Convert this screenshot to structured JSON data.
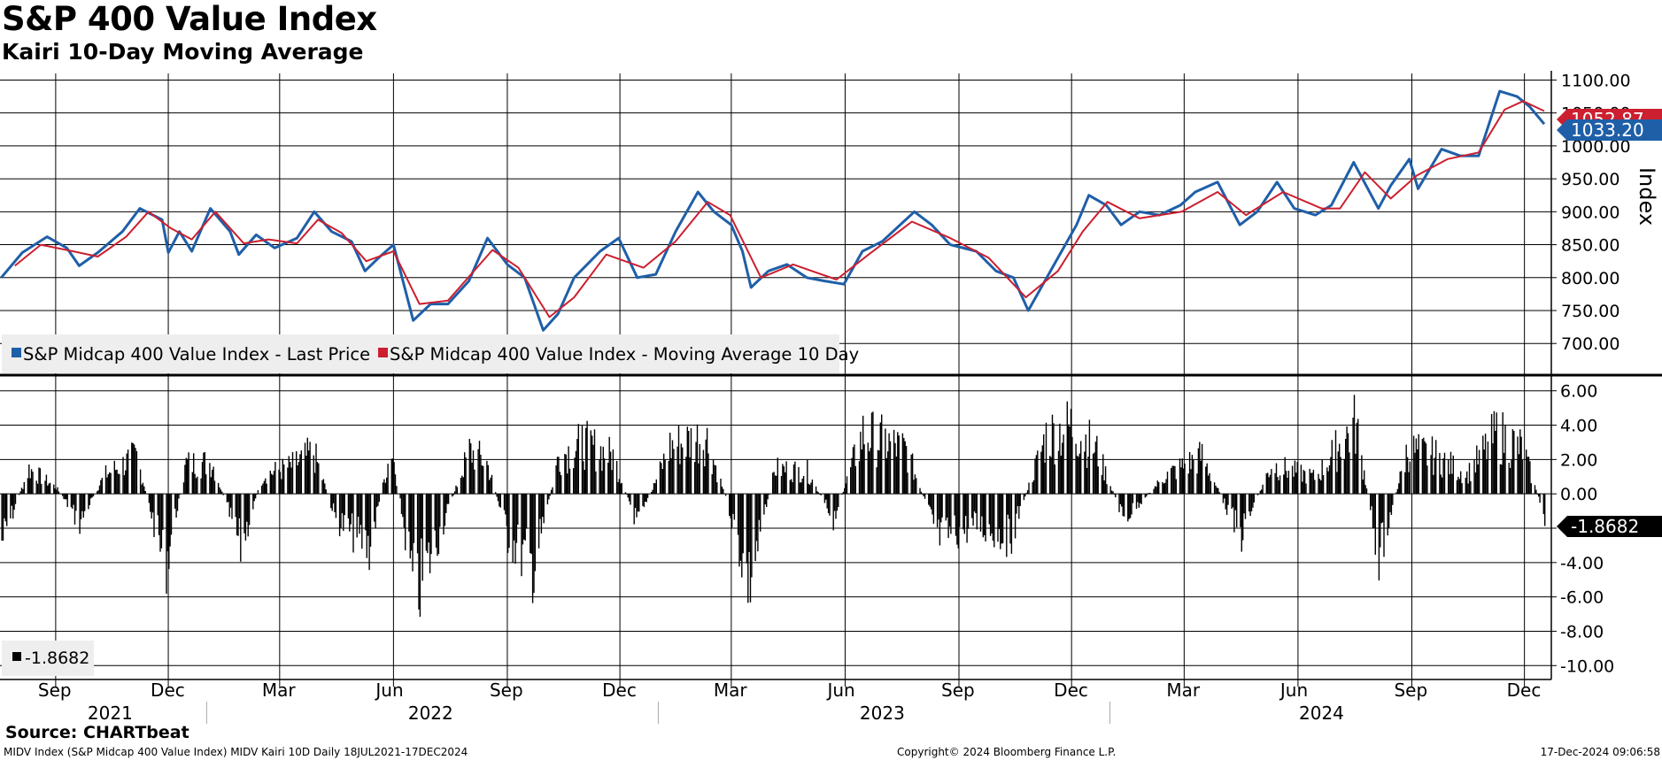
{
  "title": "S&P 400 Value Index",
  "subtitle": "Kairi 10-Day Moving Average",
  "source": "Source: CHARTbeat",
  "footer": {
    "left": "MIDV Index (S&P Midcap 400 Value Index) MIDV Kairi 10D  Daily 18JUL2021-17DEC2024",
    "center": "Copyright© 2024 Bloomberg Finance L.P.",
    "right": "17-Dec-2024 09:06:58"
  },
  "colors": {
    "price": "#1f5fa8",
    "ma": "#cc1f2f",
    "bars": "#000000",
    "grid": "#000000"
  },
  "chart_data": [
    {
      "type": "line",
      "ylabel": "Index",
      "ylim": [
        660,
        1110
      ],
      "yticks": [
        "1100.00",
        "1050.00",
        "1000.00",
        "950.00",
        "900.00",
        "850.00",
        "800.00",
        "750.00",
        "700.00"
      ],
      "legend_placement": "bottom-left",
      "grid": true,
      "x_range": [
        "2021-07-18",
        "2024-12-17"
      ],
      "month_ticks": [
        "Sep",
        "Dec",
        "Mar",
        "Jun",
        "Sep",
        "Dec",
        "Mar",
        "Jun",
        "Sep",
        "Dec",
        "Mar",
        "Jun",
        "Sep",
        "Dec"
      ],
      "year_labels": [
        "2021",
        "2022",
        "2023",
        "2024"
      ],
      "last_values": {
        "price": "1033.20",
        "ma": "1052.87"
      },
      "series": [
        {
          "name": "S&P Midcap 400 Value Index - Last Price",
          "color": "#1f5fa8",
          "points": [
            [
              "2021-07-19",
              800
            ],
            [
              "2021-08-05",
              838
            ],
            [
              "2021-08-25",
              862
            ],
            [
              "2021-09-10",
              845
            ],
            [
              "2021-09-20",
              818
            ],
            [
              "2021-10-05",
              838
            ],
            [
              "2021-10-25",
              870
            ],
            [
              "2021-11-08",
              905
            ],
            [
              "2021-11-26",
              888
            ],
            [
              "2021-12-01",
              838
            ],
            [
              "2021-12-10",
              870
            ],
            [
              "2021-12-20",
              840
            ],
            [
              "2022-01-04",
              905
            ],
            [
              "2022-01-20",
              870
            ],
            [
              "2022-01-27",
              835
            ],
            [
              "2022-02-10",
              865
            ],
            [
              "2022-02-25",
              845
            ],
            [
              "2022-03-15",
              860
            ],
            [
              "2022-03-29",
              900
            ],
            [
              "2022-04-12",
              870
            ],
            [
              "2022-04-28",
              855
            ],
            [
              "2022-05-09",
              810
            ],
            [
              "2022-05-20",
              830
            ],
            [
              "2022-06-01",
              850
            ],
            [
              "2022-06-17",
              735
            ],
            [
              "2022-07-01",
              760
            ],
            [
              "2022-07-15",
              760
            ],
            [
              "2022-08-01",
              795
            ],
            [
              "2022-08-16",
              860
            ],
            [
              "2022-09-01",
              820
            ],
            [
              "2022-09-15",
              800
            ],
            [
              "2022-09-30",
              720
            ],
            [
              "2022-10-12",
              745
            ],
            [
              "2022-10-25",
              800
            ],
            [
              "2022-11-15",
              840
            ],
            [
              "2022-11-30",
              860
            ],
            [
              "2022-12-15",
              800
            ],
            [
              "2022-12-30",
              805
            ],
            [
              "2023-01-15",
              870
            ],
            [
              "2023-02-02",
              930
            ],
            [
              "2023-02-15",
              900
            ],
            [
              "2023-03-01",
              880
            ],
            [
              "2023-03-10",
              840
            ],
            [
              "2023-03-17",
              785
            ],
            [
              "2023-03-31",
              810
            ],
            [
              "2023-04-15",
              820
            ],
            [
              "2023-05-01",
              800
            ],
            [
              "2023-05-15",
              795
            ],
            [
              "2023-05-31",
              790
            ],
            [
              "2023-06-15",
              840
            ],
            [
              "2023-07-01",
              855
            ],
            [
              "2023-07-27",
              900
            ],
            [
              "2023-08-10",
              880
            ],
            [
              "2023-08-25",
              850
            ],
            [
              "2023-09-15",
              840
            ],
            [
              "2023-10-01",
              810
            ],
            [
              "2023-10-15",
              800
            ],
            [
              "2023-10-27",
              750
            ],
            [
              "2023-11-05",
              780
            ],
            [
              "2023-11-20",
              830
            ],
            [
              "2023-12-05",
              880
            ],
            [
              "2023-12-15",
              925
            ],
            [
              "2023-12-29",
              910
            ],
            [
              "2024-01-10",
              880
            ],
            [
              "2024-01-25",
              900
            ],
            [
              "2024-02-10",
              895
            ],
            [
              "2024-02-27",
              910
            ],
            [
              "2024-03-10",
              930
            ],
            [
              "2024-03-28",
              945
            ],
            [
              "2024-04-15",
              880
            ],
            [
              "2024-04-29",
              900
            ],
            [
              "2024-05-15",
              945
            ],
            [
              "2024-05-29",
              905
            ],
            [
              "2024-06-15",
              895
            ],
            [
              "2024-06-28",
              910
            ],
            [
              "2024-07-16",
              975
            ],
            [
              "2024-08-05",
              905
            ],
            [
              "2024-08-15",
              940
            ],
            [
              "2024-08-30",
              980
            ],
            [
              "2024-09-06",
              935
            ],
            [
              "2024-09-25",
              995
            ],
            [
              "2024-10-10",
              985
            ],
            [
              "2024-10-25",
              985
            ],
            [
              "2024-11-11",
              1083
            ],
            [
              "2024-11-25",
              1075
            ],
            [
              "2024-12-05",
              1060
            ],
            [
              "2024-12-17",
              1033.2
            ]
          ]
        },
        {
          "name": "S&P Midcap 400 Value Index - Moving Average 10 Day",
          "color": "#cc1f2f",
          "points": [
            [
              "2021-07-30",
              818
            ],
            [
              "2021-08-20",
              850
            ],
            [
              "2021-09-15",
              840
            ],
            [
              "2021-10-05",
              832
            ],
            [
              "2021-10-28",
              862
            ],
            [
              "2021-11-15",
              900
            ],
            [
              "2021-12-03",
              875
            ],
            [
              "2021-12-20",
              858
            ],
            [
              "2022-01-08",
              900
            ],
            [
              "2022-01-31",
              852
            ],
            [
              "2022-02-20",
              858
            ],
            [
              "2022-03-15",
              852
            ],
            [
              "2022-04-01",
              888
            ],
            [
              "2022-04-20",
              868
            ],
            [
              "2022-05-10",
              825
            ],
            [
              "2022-06-01",
              840
            ],
            [
              "2022-06-22",
              760
            ],
            [
              "2022-07-15",
              765
            ],
            [
              "2022-08-20",
              842
            ],
            [
              "2022-09-10",
              815
            ],
            [
              "2022-10-05",
              740
            ],
            [
              "2022-10-25",
              770
            ],
            [
              "2022-11-20",
              835
            ],
            [
              "2022-12-20",
              815
            ],
            [
              "2023-01-15",
              855
            ],
            [
              "2023-02-10",
              915
            ],
            [
              "2023-02-28",
              895
            ],
            [
              "2023-03-25",
              800
            ],
            [
              "2023-04-20",
              820
            ],
            [
              "2023-05-25",
              797
            ],
            [
              "2023-06-20",
              835
            ],
            [
              "2023-07-25",
              885
            ],
            [
              "2023-08-25",
              860
            ],
            [
              "2023-09-25",
              830
            ],
            [
              "2023-10-25",
              770
            ],
            [
              "2023-11-20",
              810
            ],
            [
              "2023-12-10",
              870
            ],
            [
              "2023-12-30",
              915
            ],
            [
              "2024-01-25",
              890
            ],
            [
              "2024-02-28",
              900
            ],
            [
              "2024-03-28",
              930
            ],
            [
              "2024-04-20",
              895
            ],
            [
              "2024-05-20",
              930
            ],
            [
              "2024-06-20",
              905
            ],
            [
              "2024-07-05",
              905
            ],
            [
              "2024-07-25",
              960
            ],
            [
              "2024-08-15",
              920
            ],
            [
              "2024-09-05",
              955
            ],
            [
              "2024-09-30",
              980
            ],
            [
              "2024-10-25",
              990
            ],
            [
              "2024-11-15",
              1055
            ],
            [
              "2024-11-30",
              1068
            ],
            [
              "2024-12-17",
              1052.87
            ]
          ]
        }
      ]
    },
    {
      "type": "bar",
      "ylim": [
        -10.5,
        6.5
      ],
      "yticks": [
        "6.00",
        "4.00",
        "2.00",
        "0.00",
        "-2.00",
        "-4.00",
        "-6.00",
        "-8.00",
        "-10.00"
      ],
      "last_value": "-1.8682",
      "legend_value": "-1.8682",
      "color": "#000000",
      "envelope_note_free": true,
      "envelope": [
        [
          "2021-07-19",
          -3.8
        ],
        [
          "2021-08-10",
          2.0
        ],
        [
          "2021-09-01",
          0.5
        ],
        [
          "2021-09-20",
          -2.3
        ],
        [
          "2021-10-10",
          1.5
        ],
        [
          "2021-11-05",
          3.0
        ],
        [
          "2021-11-28",
          -5.8
        ],
        [
          "2021-12-15",
          2.4
        ],
        [
          "2022-01-05",
          2.5
        ],
        [
          "2022-01-28",
          -4.3
        ],
        [
          "2022-02-15",
          1.5
        ],
        [
          "2022-03-10",
          2.2
        ],
        [
          "2022-03-28",
          3.3
        ],
        [
          "2022-04-15",
          -2.0
        ],
        [
          "2022-05-12",
          -4.3
        ],
        [
          "2022-05-30",
          3.8
        ],
        [
          "2022-06-18",
          -8.3
        ],
        [
          "2022-07-10",
          -2.5
        ],
        [
          "2022-08-01",
          3.4
        ],
        [
          "2022-08-15",
          2.5
        ],
        [
          "2022-09-01",
          -3.3
        ],
        [
          "2022-09-22",
          -6.0
        ],
        [
          "2022-10-12",
          3.0
        ],
        [
          "2022-11-01",
          4.0
        ],
        [
          "2022-11-25",
          3.0
        ],
        [
          "2022-12-15",
          -2.5
        ],
        [
          "2023-01-10",
          3.8
        ],
        [
          "2023-02-08",
          4.6
        ],
        [
          "2023-02-28",
          -1.5
        ],
        [
          "2023-03-15",
          -7.1
        ],
        [
          "2023-04-05",
          2.0
        ],
        [
          "2023-05-01",
          1.8
        ],
        [
          "2023-05-22",
          -2.0
        ],
        [
          "2023-06-15",
          4.8
        ],
        [
          "2023-07-20",
          3.5
        ],
        [
          "2023-08-15",
          -3.5
        ],
        [
          "2023-09-15",
          -2.5
        ],
        [
          "2023-10-12",
          -3.5
        ],
        [
          "2023-11-10",
          4.6
        ],
        [
          "2023-12-01",
          5.4
        ],
        [
          "2023-12-20",
          3.6
        ],
        [
          "2024-01-12",
          -2.0
        ],
        [
          "2024-02-15",
          1.5
        ],
        [
          "2024-03-15",
          3.0
        ],
        [
          "2024-04-15",
          -3.4
        ],
        [
          "2024-05-10",
          2.3
        ],
        [
          "2024-06-15",
          1.3
        ],
        [
          "2024-07-17",
          5.6
        ],
        [
          "2024-08-05",
          -5.0
        ],
        [
          "2024-08-28",
          3.5
        ],
        [
          "2024-09-20",
          3.0
        ],
        [
          "2024-10-15",
          1.5
        ],
        [
          "2024-11-08",
          4.8
        ],
        [
          "2024-11-29",
          3.6
        ],
        [
          "2024-12-17",
          -1.8682
        ]
      ]
    }
  ]
}
